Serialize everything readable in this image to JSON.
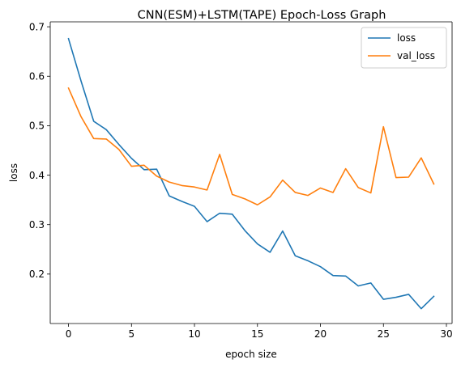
{
  "chart_data": {
    "type": "line",
    "title": "CNN(ESM)+LSTM(TAPE) Epoch-Loss Graph",
    "xlabel": "epoch size",
    "ylabel": "loss",
    "xlim": [
      -1.45,
      30.45
    ],
    "ylim": [
      0.1,
      0.71
    ],
    "xticks": [
      0,
      5,
      10,
      15,
      20,
      25,
      30
    ],
    "yticks": [
      0.2,
      0.3,
      0.4,
      0.5,
      0.6,
      0.7
    ],
    "xtick_labels": [
      "0",
      "5",
      "10",
      "15",
      "20",
      "25",
      "30"
    ],
    "ytick_labels": [
      "0.2",
      "0.3",
      "0.4",
      "0.5",
      "0.6",
      "0.7"
    ],
    "grid": false,
    "legend_position": "top-right",
    "x": [
      0,
      1,
      2,
      3,
      4,
      5,
      6,
      7,
      8,
      9,
      10,
      11,
      12,
      13,
      14,
      15,
      16,
      17,
      18,
      19,
      20,
      21,
      22,
      23,
      24,
      25,
      26,
      27,
      28,
      29
    ],
    "series": [
      {
        "name": "loss",
        "color": "#1f77b4",
        "values": [
          0.676,
          0.59,
          0.509,
          0.492,
          0.462,
          0.434,
          0.411,
          0.412,
          0.358,
          0.347,
          0.337,
          0.306,
          0.323,
          0.321,
          0.288,
          0.261,
          0.244,
          0.287,
          0.237,
          0.227,
          0.215,
          0.197,
          0.196,
          0.176,
          0.182,
          0.149,
          0.153,
          0.159,
          0.13,
          0.155
        ]
      },
      {
        "name": "val_loss",
        "color": "#ff7f0e",
        "values": [
          0.576,
          0.518,
          0.474,
          0.473,
          0.452,
          0.418,
          0.42,
          0.398,
          0.386,
          0.379,
          0.376,
          0.37,
          0.442,
          0.361,
          0.352,
          0.34,
          0.356,
          0.39,
          0.365,
          0.359,
          0.374,
          0.365,
          0.413,
          0.375,
          0.364,
          0.498,
          0.395,
          0.396,
          0.435,
          0.382
        ]
      }
    ]
  }
}
